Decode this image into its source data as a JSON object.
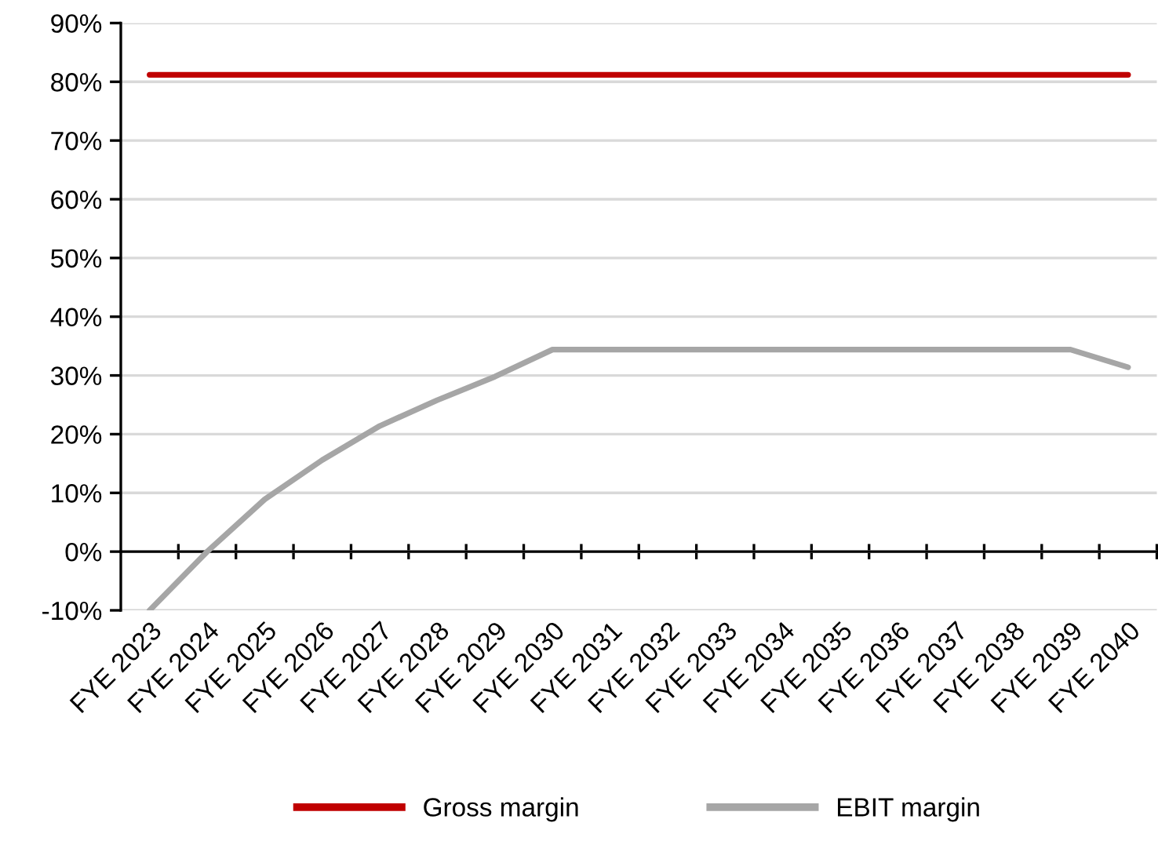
{
  "chart_data": {
    "type": "line",
    "categories": [
      "FYE 2023",
      "FYE 2024",
      "FYE 2025",
      "FYE 2026",
      "FYE 2027",
      "FYE 2028",
      "FYE 2029",
      "FYE 2030",
      "FYE 2031",
      "FYE 2032",
      "FYE 2033",
      "FYE 2034",
      "FYE 2035",
      "FYE 2036",
      "FYE 2037",
      "FYE 2038",
      "FYE 2039",
      "FYE 2040"
    ],
    "series": [
      {
        "name": "Gross margin",
        "color": "#c00000",
        "values": [
          81.2,
          81.2,
          81.2,
          81.2,
          81.2,
          81.2,
          81.2,
          81.2,
          81.2,
          81.2,
          81.2,
          81.2,
          81.2,
          81.2,
          81.2,
          81.2,
          81.2,
          81.2
        ]
      },
      {
        "name": "EBIT margin",
        "color": "#a6a6a6",
        "values": [
          -10,
          0,
          8.9,
          15.6,
          21.4,
          25.8,
          29.8,
          34.4,
          34.4,
          34.4,
          34.4,
          34.4,
          34.4,
          34.4,
          34.4,
          34.4,
          34.4,
          31.4
        ]
      }
    ],
    "ylim": [
      -10,
      90
    ],
    "yticks": [
      {
        "value": -10,
        "label": "-10%"
      },
      {
        "value": 0,
        "label": "0%"
      },
      {
        "value": 10,
        "label": "10%"
      },
      {
        "value": 20,
        "label": "20%"
      },
      {
        "value": 30,
        "label": "30%"
      },
      {
        "value": 40,
        "label": "40%"
      },
      {
        "value": 50,
        "label": "50%"
      },
      {
        "value": 60,
        "label": "60%"
      },
      {
        "value": 70,
        "label": "70%"
      },
      {
        "value": 80,
        "label": "80%"
      },
      {
        "value": 90,
        "label": "90%"
      }
    ],
    "grid": "y",
    "legend": "bottom",
    "marker": "none",
    "line_style": "solid"
  }
}
